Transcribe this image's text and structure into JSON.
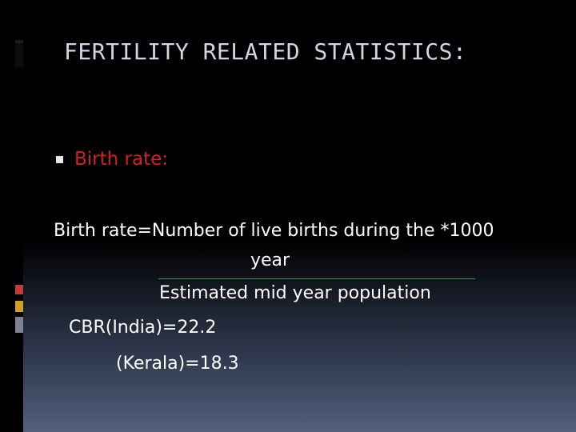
{
  "slide": {
    "title": "FERTILITY RELATED STATISTICS:",
    "bullet": "Birth rate:",
    "formula": {
      "lhs": "Birth rate=Number of live births during the *1000",
      "numerator_cont": "year",
      "denominator": "Estimated mid year population"
    },
    "stats": {
      "india": "CBR(India)=22.2",
      "kerala": "(Kerala)=18.3"
    },
    "colors": {
      "background": "#000000",
      "title": "#cfd6e6",
      "bullet_text": "#d81e1e",
      "body_text": "#ffffff",
      "fraction_rule": "#3e8e3e"
    },
    "icons": [
      "square-bullet-icon"
    ]
  }
}
